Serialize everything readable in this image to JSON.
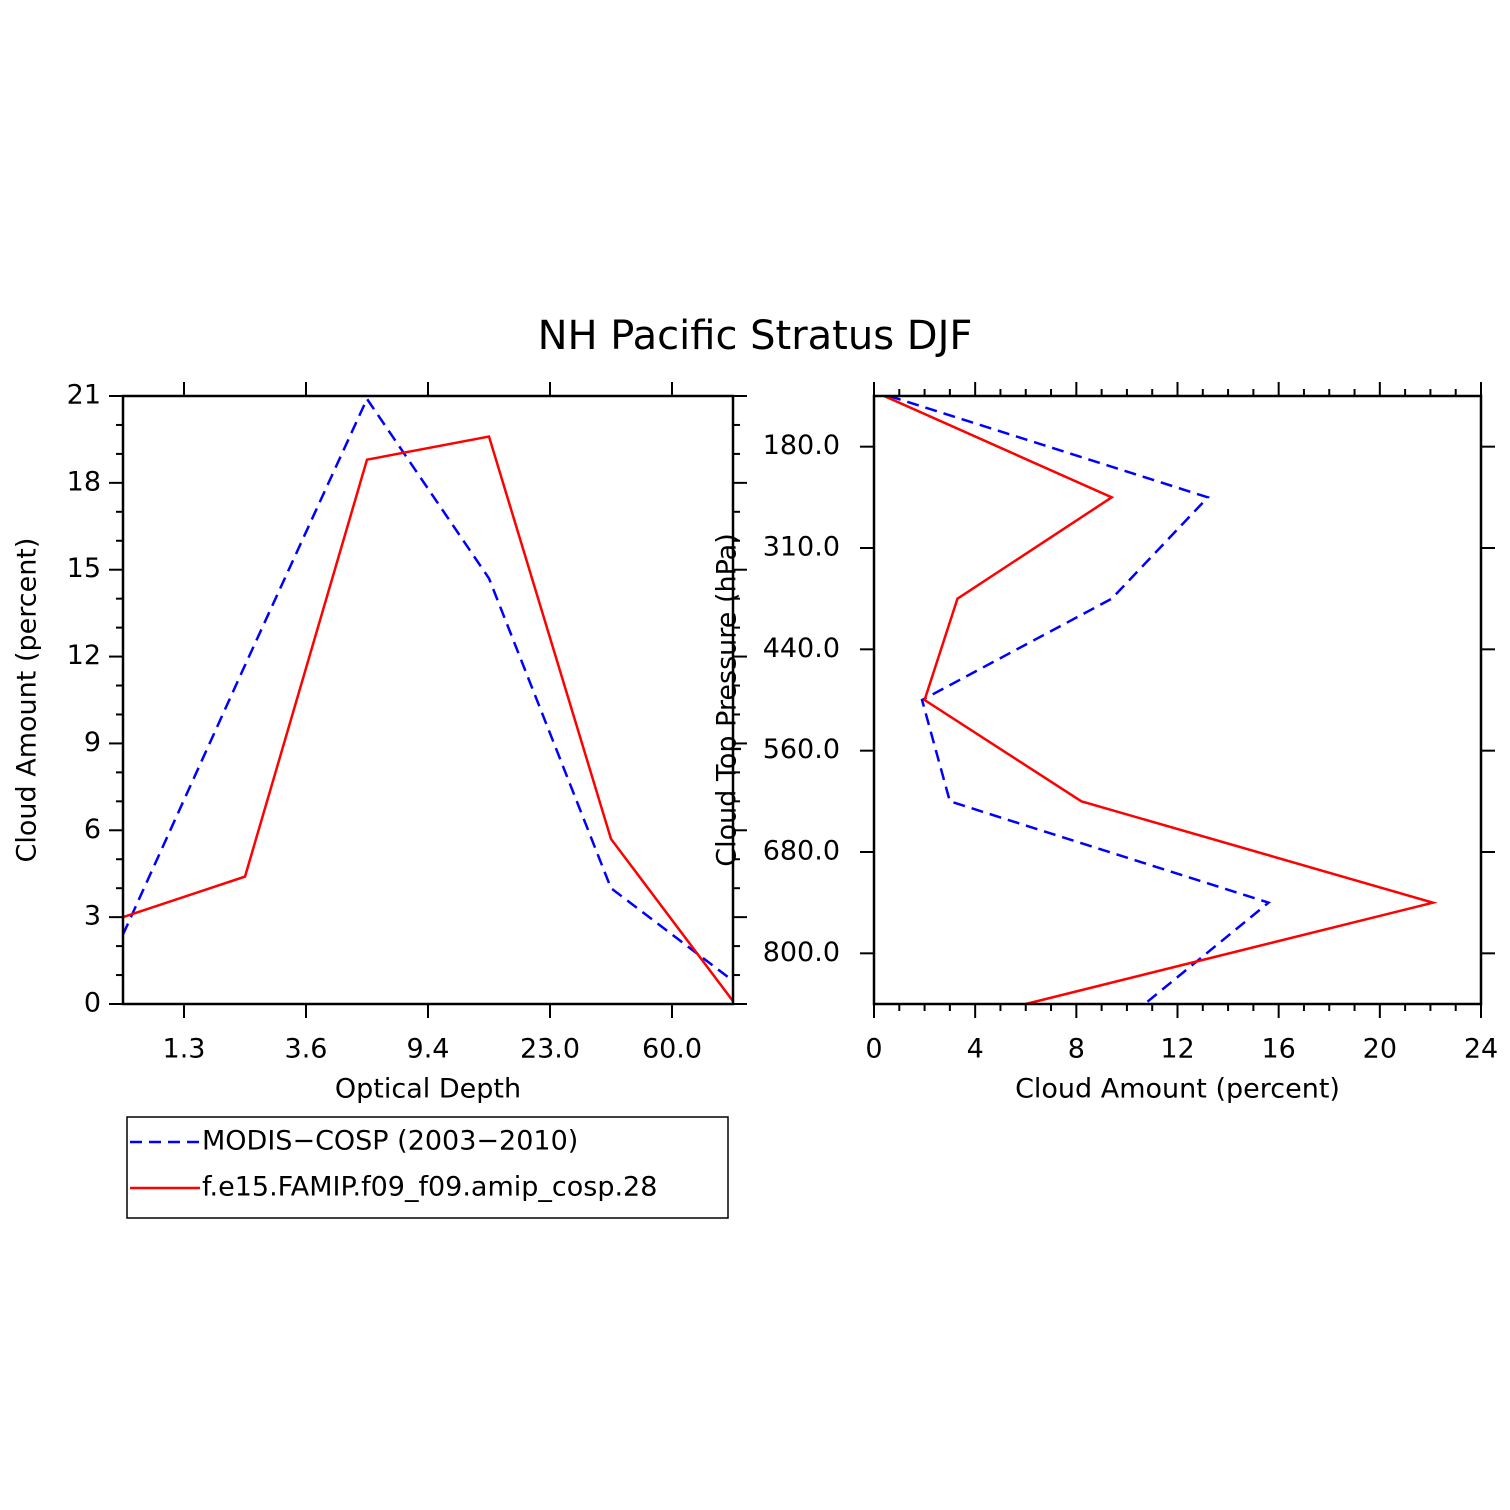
{
  "title": "NH Pacific Stratus DJF",
  "chart_data": [
    {
      "type": "line",
      "orientation": "vertical",
      "xlabel": "Optical Depth",
      "ylabel": "Cloud Amount (percent)",
      "categories": [
        null,
        null,
        null,
        null,
        null,
        null
      ],
      "xticks": [
        {
          "value": 0.5,
          "label": "1.3"
        },
        {
          "value": 1.5,
          "label": "3.6"
        },
        {
          "value": 2.5,
          "label": "9.4"
        },
        {
          "value": 3.5,
          "label": "23.0"
        },
        {
          "value": 4.5,
          "label": "60.0"
        }
      ],
      "ylim": [
        0,
        21
      ],
      "yticks": [
        0,
        3,
        6,
        9,
        12,
        15,
        18,
        21
      ],
      "minor_tick_step": 1,
      "series": [
        {
          "name": "MODIS−COSP (2003−2010)",
          "color": "#0000ff",
          "dashed": true,
          "values": [
            2.4,
            11.7,
            20.9,
            14.7,
            4.0,
            0.8
          ]
        },
        {
          "name": "f.e15.FAMIP.f09_f09.amip_cosp.28",
          "color": "#ff0000",
          "dashed": false,
          "values": [
            3.0,
            4.4,
            18.8,
            19.6,
            5.7,
            0.1
          ]
        }
      ]
    },
    {
      "type": "line",
      "orientation": "horizontal",
      "y_reversed": true,
      "xlabel": "Cloud Amount (percent)",
      "ylabel": "Cloud Top Pressure (hPa)",
      "categories": [
        null,
        null,
        null,
        null,
        null,
        null,
        null
      ],
      "yticks": [
        {
          "value": 0.5,
          "label": "180.0"
        },
        {
          "value": 1.5,
          "label": "310.0"
        },
        {
          "value": 2.5,
          "label": "440.0"
        },
        {
          "value": 3.5,
          "label": "560.0"
        },
        {
          "value": 4.5,
          "label": "680.0"
        },
        {
          "value": 5.5,
          "label": "800.0"
        }
      ],
      "xlim": [
        0,
        24
      ],
      "xticks": [
        0,
        4,
        8,
        12,
        16,
        20,
        24
      ],
      "minor_tick_step": 1,
      "series": [
        {
          "color": "#0000ff",
          "dashed": true,
          "values": [
            0.6,
            13.2,
            9.4,
            1.9,
            3.0,
            15.6,
            10.7
          ]
        },
        {
          "color": "#ff0000",
          "dashed": false,
          "values": [
            0.4,
            9.4,
            3.3,
            2.0,
            8.2,
            22.1,
            6.0
          ]
        }
      ]
    }
  ]
}
